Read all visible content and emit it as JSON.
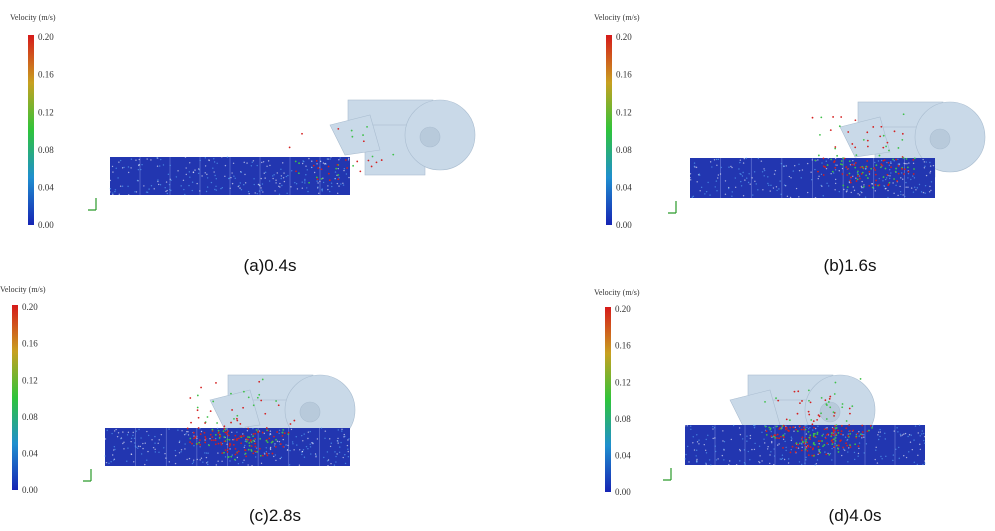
{
  "panels": [
    {
      "caption": "(a)0.4s",
      "colorbar_title": "Velocity (m/s)",
      "ticks": [
        "0.20",
        "0.16",
        "0.12",
        "0.08",
        "0.04",
        "0.00"
      ]
    },
    {
      "caption": "(b)1.6s",
      "colorbar_title": "Velocity (m/s)",
      "ticks": [
        "0.20",
        "0.16",
        "0.12",
        "0.08",
        "0.04",
        "0.00"
      ]
    },
    {
      "caption": "(c)2.8s",
      "colorbar_title": "Velocity (m/s)",
      "ticks": [
        "0.20",
        "0.16",
        "0.12",
        "0.08",
        "0.04",
        "0.00"
      ]
    },
    {
      "caption": "(d)4.0s",
      "colorbar_title": "Velocity (m/s)",
      "ticks": [
        "0.20",
        "0.16",
        "0.12",
        "0.08",
        "0.04",
        "0.00"
      ]
    }
  ]
}
